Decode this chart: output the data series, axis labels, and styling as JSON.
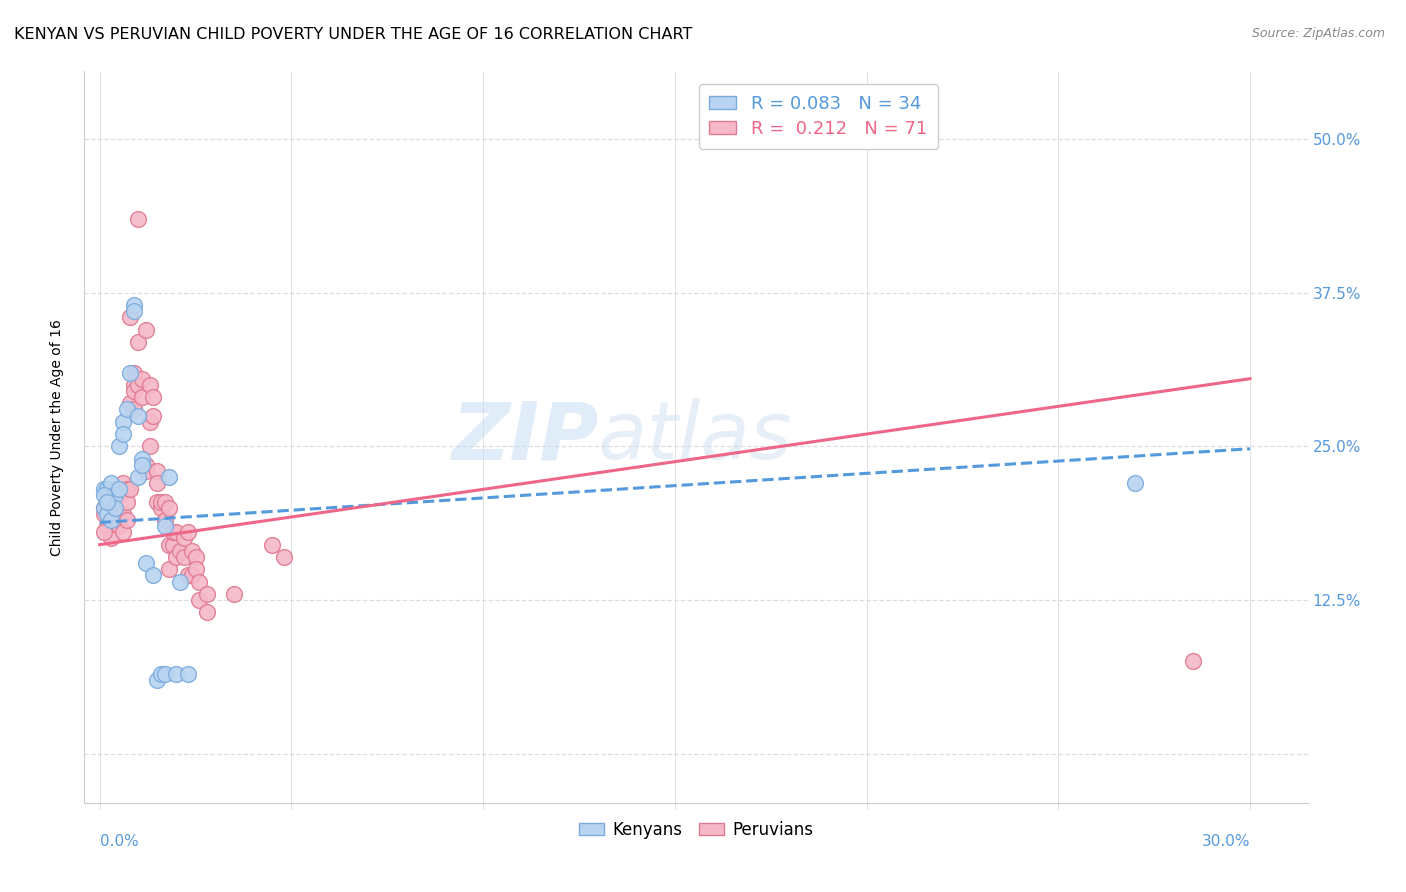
{
  "title": "KENYAN VS PERUVIAN CHILD POVERTY UNDER THE AGE OF 16 CORRELATION CHART",
  "source": "Source: ZipAtlas.com",
  "ylabel": "Child Poverty Under the Age of 16",
  "yticks": [
    0.0,
    0.125,
    0.25,
    0.375,
    0.5
  ],
  "ytick_labels": [
    "",
    "12.5%",
    "25.0%",
    "37.5%",
    "50.0%"
  ],
  "xticks": [
    0.0,
    0.05,
    0.1,
    0.15,
    0.2,
    0.25,
    0.3
  ],
  "xlim": [
    -0.004,
    0.315
  ],
  "ylim": [
    -0.04,
    0.555
  ],
  "watermark_zip": "ZIP",
  "watermark_atlas": "atlas",
  "kenya_R": "0.083",
  "kenya_N": "34",
  "peru_R": "0.212",
  "peru_N": "71",
  "kenya_color": "#b8d4f0",
  "kenya_edge": "#7aaade",
  "peru_color": "#f5b8c8",
  "peru_edge": "#e07890",
  "kenya_line_color": "#5599dd",
  "peru_line_color": "#ee6688",
  "kenya_trend_x": [
    0.0,
    0.3
  ],
  "kenya_trend_y": [
    0.188,
    0.248
  ],
  "peru_trend_x": [
    0.0,
    0.3
  ],
  "peru_trend_y": [
    0.17,
    0.305
  ],
  "background_color": "#ffffff",
  "grid_color": "#dddddd",
  "tick_color": "#5599dd",
  "title_fontsize": 11.5,
  "axis_fontsize": 10,
  "tick_fontsize": 11,
  "source_fontsize": 9,
  "legend_fontsize": 13,
  "marker_size": 130,
  "kenya_points": [
    [
      0.001,
      0.215
    ],
    [
      0.001,
      0.2
    ],
    [
      0.002,
      0.195
    ],
    [
      0.002,
      0.215
    ],
    [
      0.003,
      0.205
    ],
    [
      0.003,
      0.22
    ],
    [
      0.003,
      0.19
    ],
    [
      0.004,
      0.21
    ],
    [
      0.004,
      0.2
    ],
    [
      0.005,
      0.215
    ],
    [
      0.005,
      0.25
    ],
    [
      0.006,
      0.27
    ],
    [
      0.006,
      0.26
    ],
    [
      0.007,
      0.28
    ],
    [
      0.008,
      0.31
    ],
    [
      0.009,
      0.365
    ],
    [
      0.009,
      0.36
    ],
    [
      0.01,
      0.275
    ],
    [
      0.01,
      0.225
    ],
    [
      0.011,
      0.24
    ],
    [
      0.011,
      0.235
    ],
    [
      0.012,
      0.155
    ],
    [
      0.014,
      0.145
    ],
    [
      0.015,
      0.06
    ],
    [
      0.016,
      0.065
    ],
    [
      0.017,
      0.065
    ],
    [
      0.017,
      0.185
    ],
    [
      0.018,
      0.225
    ],
    [
      0.02,
      0.065
    ],
    [
      0.021,
      0.14
    ],
    [
      0.023,
      0.065
    ],
    [
      0.27,
      0.22
    ],
    [
      0.001,
      0.21
    ],
    [
      0.002,
      0.205
    ]
  ],
  "peru_points": [
    [
      0.001,
      0.2
    ],
    [
      0.001,
      0.195
    ],
    [
      0.002,
      0.205
    ],
    [
      0.002,
      0.185
    ],
    [
      0.003,
      0.19
    ],
    [
      0.003,
      0.175
    ],
    [
      0.003,
      0.205
    ],
    [
      0.004,
      0.19
    ],
    [
      0.004,
      0.2
    ],
    [
      0.004,
      0.215
    ],
    [
      0.005,
      0.185
    ],
    [
      0.005,
      0.195
    ],
    [
      0.005,
      0.21
    ],
    [
      0.006,
      0.22
    ],
    [
      0.006,
      0.18
    ],
    [
      0.006,
      0.195
    ],
    [
      0.007,
      0.215
    ],
    [
      0.007,
      0.205
    ],
    [
      0.007,
      0.19
    ],
    [
      0.008,
      0.215
    ],
    [
      0.008,
      0.285
    ],
    [
      0.008,
      0.355
    ],
    [
      0.009,
      0.3
    ],
    [
      0.009,
      0.31
    ],
    [
      0.009,
      0.28
    ],
    [
      0.009,
      0.295
    ],
    [
      0.01,
      0.335
    ],
    [
      0.01,
      0.435
    ],
    [
      0.01,
      0.3
    ],
    [
      0.011,
      0.305
    ],
    [
      0.011,
      0.29
    ],
    [
      0.012,
      0.345
    ],
    [
      0.012,
      0.235
    ],
    [
      0.012,
      0.23
    ],
    [
      0.013,
      0.3
    ],
    [
      0.013,
      0.27
    ],
    [
      0.013,
      0.25
    ],
    [
      0.014,
      0.29
    ],
    [
      0.014,
      0.275
    ],
    [
      0.015,
      0.23
    ],
    [
      0.015,
      0.205
    ],
    [
      0.015,
      0.22
    ],
    [
      0.016,
      0.2
    ],
    [
      0.016,
      0.205
    ],
    [
      0.017,
      0.19
    ],
    [
      0.017,
      0.205
    ],
    [
      0.018,
      0.2
    ],
    [
      0.018,
      0.15
    ],
    [
      0.018,
      0.17
    ],
    [
      0.019,
      0.17
    ],
    [
      0.019,
      0.18
    ],
    [
      0.02,
      0.18
    ],
    [
      0.02,
      0.16
    ],
    [
      0.021,
      0.165
    ],
    [
      0.022,
      0.16
    ],
    [
      0.022,
      0.175
    ],
    [
      0.023,
      0.18
    ],
    [
      0.023,
      0.145
    ],
    [
      0.024,
      0.165
    ],
    [
      0.024,
      0.145
    ],
    [
      0.025,
      0.16
    ],
    [
      0.025,
      0.15
    ],
    [
      0.026,
      0.14
    ],
    [
      0.026,
      0.125
    ],
    [
      0.028,
      0.13
    ],
    [
      0.028,
      0.115
    ],
    [
      0.035,
      0.13
    ],
    [
      0.045,
      0.17
    ],
    [
      0.048,
      0.16
    ],
    [
      0.285,
      0.075
    ],
    [
      0.001,
      0.18
    ]
  ]
}
